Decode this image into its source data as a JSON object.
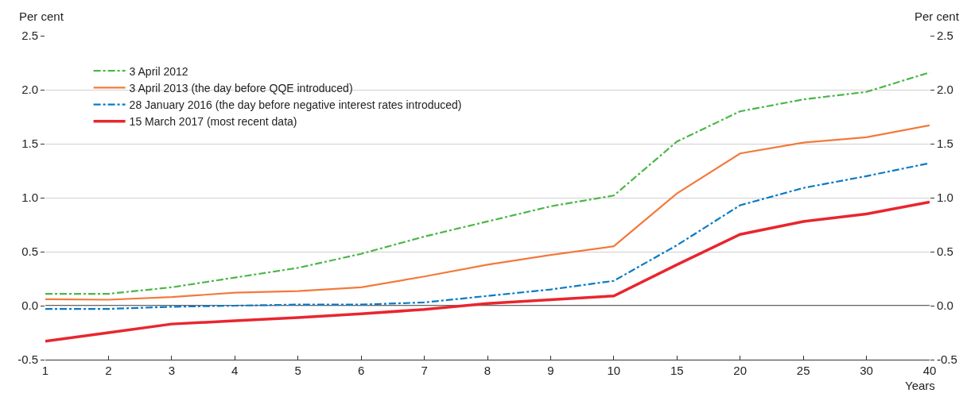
{
  "chart_data": {
    "type": "line",
    "ylabel": "Per cent",
    "y2label": "Per cent",
    "xlabel": "Years",
    "categories": [
      "1",
      "2",
      "3",
      "4",
      "5",
      "6",
      "7",
      "8",
      "9",
      "10",
      "15",
      "20",
      "25",
      "30",
      "40"
    ],
    "ylim": [
      -0.5,
      2.5
    ],
    "yticks": [
      {
        "value": -0.5,
        "label": "-0.5"
      },
      {
        "value": 0,
        "label": "0.0"
      },
      {
        "value": 0.5,
        "label": "0.5"
      },
      {
        "value": 1,
        "label": "1.0"
      },
      {
        "value": 1.5,
        "label": "1.5"
      },
      {
        "value": 2,
        "label": "2.0"
      },
      {
        "value": 2.5,
        "label": "2.5"
      }
    ],
    "y2lim": [
      -0.5,
      2.5
    ],
    "y2ticks": [
      {
        "value": -0.5,
        "label": "-0.5"
      },
      {
        "value": 0,
        "label": "0.0"
      },
      {
        "value": 0.5,
        "label": "0.5"
      },
      {
        "value": 1,
        "label": "1.0"
      },
      {
        "value": 1.5,
        "label": "1.5"
      },
      {
        "value": 2,
        "label": "2.0"
      },
      {
        "value": 2.5,
        "label": "2.5"
      }
    ],
    "grid": "y",
    "legend": "top left",
    "marker": "none",
    "ref_lines": [
      {
        "axis": "y",
        "value": 0,
        "color": "#333333"
      }
    ],
    "series": [
      {
        "name": "3 April 2012",
        "color": "#4cb648",
        "line_style": "dashed",
        "values": [
          0.11,
          0.11,
          0.17,
          0.26,
          0.35,
          0.48,
          0.64,
          0.78,
          0.92,
          1.02,
          1.52,
          1.8,
          1.91,
          1.98,
          2.16
        ]
      },
      {
        "name": "3 April 2013 (the day before QQE introduced)",
        "color": "#f4793b",
        "line_style": "solid",
        "values": [
          0.06,
          0.055,
          0.08,
          0.12,
          0.135,
          0.17,
          0.27,
          0.38,
          0.47,
          0.55,
          1.04,
          1.41,
          1.51,
          1.56,
          1.67
        ]
      },
      {
        "name": "28 January 2016 (the day before negative interest rates introduced)",
        "color": "#0a7bc4",
        "line_style": "dashed",
        "values": [
          -0.03,
          -0.03,
          -0.01,
          0.0,
          0.01,
          0.01,
          0.03,
          0.09,
          0.15,
          0.23,
          0.56,
          0.93,
          1.09,
          1.2,
          1.32
        ]
      },
      {
        "name": "15 March 2017 (most recent data)",
        "color": "#e8262f",
        "line_style": "solid",
        "values": [
          -0.33,
          -0.25,
          -0.17,
          -0.14,
          -0.11,
          -0.075,
          -0.035,
          0.02,
          0.055,
          0.09,
          0.38,
          0.66,
          0.78,
          0.85,
          0.96
        ]
      }
    ]
  }
}
